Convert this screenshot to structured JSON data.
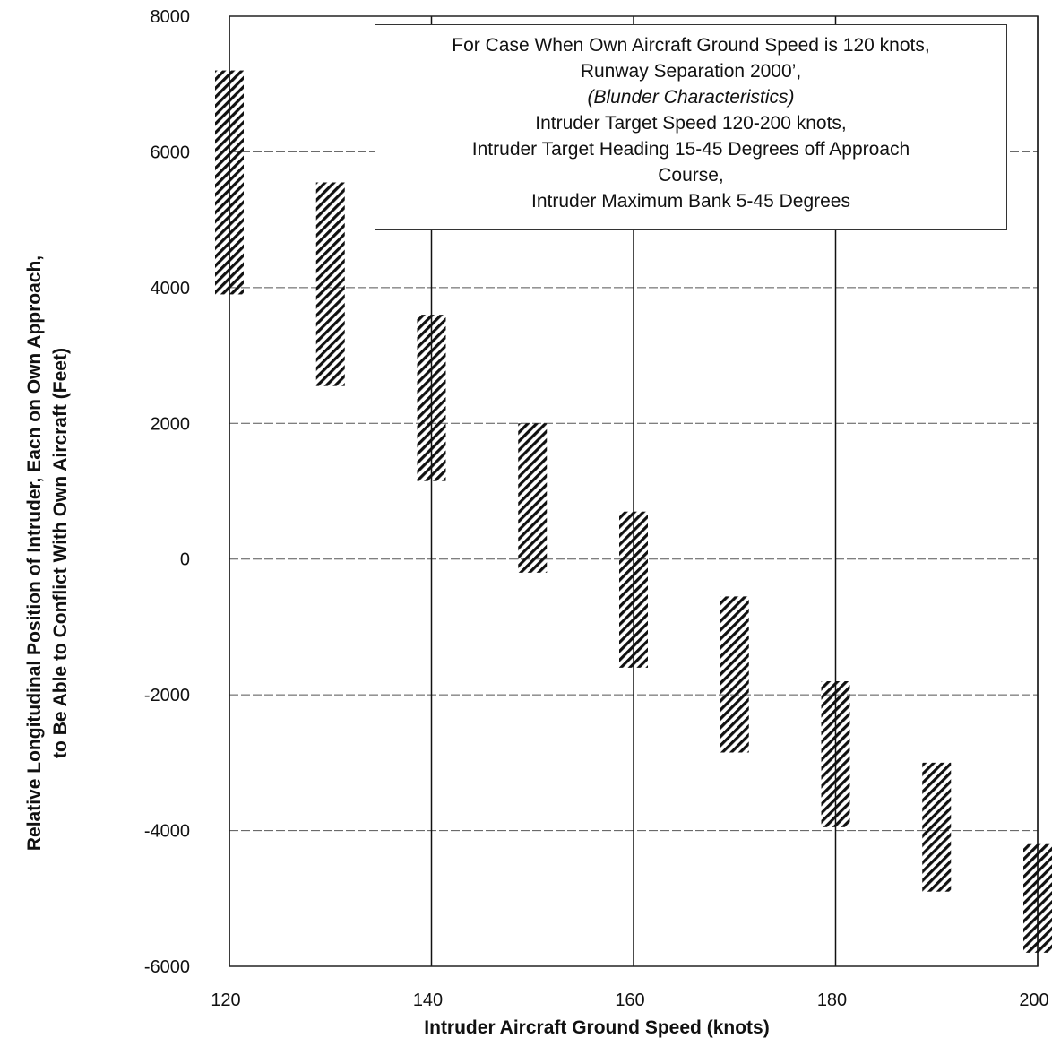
{
  "chart_data": {
    "type": "bar",
    "subtype": "floating-range",
    "xlabel": "Intruder Aircraft Ground Speed (knots)",
    "ylabel_lines": [
      "Relative Longitudinal Position of Intruder, Eacn on Own Approach,",
      "to Be Able to Conflict With Own Aircraft (Feet)"
    ],
    "xlim": [
      120,
      200
    ],
    "ylim": [
      -6000,
      8000
    ],
    "x_ticks": [
      "120",
      "140",
      "160",
      "180",
      "200"
    ],
    "x_tick_values": [
      120,
      140,
      160,
      180,
      200
    ],
    "y_ticks": [
      "8000",
      "6000",
      "4000",
      "2000",
      "0",
      "-2000",
      "-4000",
      "-6000"
    ],
    "y_tick_values": [
      8000,
      6000,
      4000,
      2000,
      0,
      -2000,
      -4000,
      -6000
    ],
    "ranges": [
      {
        "x": 120,
        "low": 3900,
        "high": 7200
      },
      {
        "x": 130,
        "low": 2550,
        "high": 5550
      },
      {
        "x": 140,
        "low": 1150,
        "high": 3600
      },
      {
        "x": 150,
        "low": -200,
        "high": 2000
      },
      {
        "x": 160,
        "low": -1600,
        "high": 700
      },
      {
        "x": 170,
        "low": -2850,
        "high": -550
      },
      {
        "x": 180,
        "low": -3950,
        "high": -1800
      },
      {
        "x": 190,
        "low": -4900,
        "high": -3000
      },
      {
        "x": 200,
        "low": -5800,
        "high": -4200
      }
    ],
    "grid": true,
    "annotation": {
      "position": "top-right",
      "lines": [
        {
          "text": "For Case When Own Aircraft Ground Speed is 120 knots,",
          "italic": false
        },
        {
          "text": "Runway Separation 2000’,",
          "italic": false
        },
        {
          "text": "(Blunder Characteristics)",
          "italic": true
        },
        {
          "text": "Intruder Target Speed 120-200 knots,",
          "italic": false
        },
        {
          "text": "Intruder Target Heading 15-45 Degrees off Approach",
          "italic": false
        },
        {
          "text": "Course,",
          "italic": false
        },
        {
          "text": "Intruder Maximum Bank 5-45 Degrees",
          "italic": false
        }
      ]
    },
    "colors": {
      "hatch": "#111111",
      "grid": "#555555",
      "background": "#ffffff"
    }
  }
}
